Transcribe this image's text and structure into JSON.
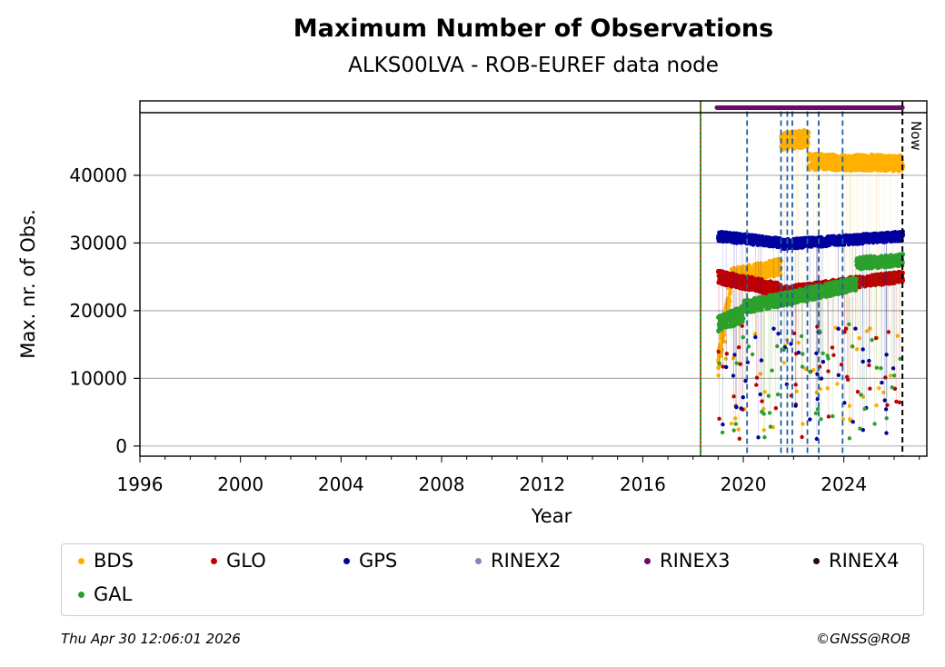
{
  "chart_data": {
    "type": "scatter",
    "title": "Maximum Number of Observations",
    "subtitle": "ALKS00LVA - ROB-EUREF data node",
    "xlabel": "Year",
    "ylabel": "Max. nr. of Obs.",
    "xlim": [
      1996,
      2027.3
    ],
    "ylim": [
      -1500,
      51000
    ],
    "xticks": [
      1996,
      2000,
      2004,
      2008,
      2012,
      2016,
      2020,
      2024
    ],
    "yticks": [
      0,
      10000,
      20000,
      30000,
      40000
    ],
    "grid": "y",
    "legend_position": "bottom",
    "legend_columns": 6,
    "now_label": "Now",
    "now_year": 2026.33,
    "start_year": 2018.3,
    "rinex3_band_y": 50000,
    "rinex3_band_range": [
      2018.95,
      2026.33
    ],
    "event_lines": [
      2020.15,
      2021.5,
      2021.75,
      2021.95,
      2022.55,
      2023.0,
      2023.95
    ],
    "series": [
      {
        "name": "BDS",
        "color": "#ffb000",
        "segments": [
          {
            "x0": 2019.0,
            "x1": 2019.5,
            "y0": 12000,
            "y1": 24000,
            "spread": 1600
          },
          {
            "x0": 2019.5,
            "x1": 2021.5,
            "y0": 25000,
            "y1": 26500,
            "spread": 1200
          },
          {
            "x0": 2021.5,
            "x1": 2022.6,
            "y0": 45000,
            "y1": 45500,
            "spread": 1300
          },
          {
            "x0": 2022.6,
            "x1": 2026.35,
            "y0": 42000,
            "y1": 41800,
            "spread": 1200
          }
        ]
      },
      {
        "name": "GLO",
        "color": "#c00000",
        "segments": [
          {
            "x0": 2019.0,
            "x1": 2021.5,
            "y0": 25000,
            "y1": 23000,
            "spread": 1000
          },
          {
            "x0": 2021.5,
            "x1": 2023.5,
            "y0": 22500,
            "y1": 23500,
            "spread": 1000
          },
          {
            "x0": 2023.5,
            "x1": 2026.35,
            "y0": 23800,
            "y1": 25000,
            "spread": 800
          }
        ]
      },
      {
        "name": "GPS",
        "color": "#00009f",
        "segments": [
          {
            "x0": 2019.0,
            "x1": 2021.5,
            "y0": 31000,
            "y1": 30000,
            "spread": 700
          },
          {
            "x0": 2021.5,
            "x1": 2026.35,
            "y0": 29800,
            "y1": 31000,
            "spread": 700
          }
        ]
      },
      {
        "name": "RINEX2",
        "color": "#8c7fbf",
        "segments": []
      },
      {
        "name": "RINEX3",
        "color": "#6a0a6a",
        "segments": []
      },
      {
        "name": "RINEX4",
        "color": "#2a0820",
        "segments": []
      },
      {
        "name": "GAL",
        "color": "#2ca02c",
        "segments": [
          {
            "x0": 2019.0,
            "x1": 2020.0,
            "y0": 18000,
            "y1": 19500,
            "spread": 1200
          },
          {
            "x0": 2020.0,
            "x1": 2022.0,
            "y0": 20500,
            "y1": 22000,
            "spread": 1000
          },
          {
            "x0": 2022.0,
            "x1": 2024.5,
            "y0": 22000,
            "y1": 24000,
            "spread": 1000
          },
          {
            "x0": 2024.5,
            "x1": 2026.35,
            "y0": 27000,
            "y1": 27500,
            "spread": 900
          }
        ]
      }
    ]
  },
  "footer": {
    "timestamp": "Thu Apr 30 12:06:01 2026",
    "credit": "©GNSS@ROB"
  }
}
